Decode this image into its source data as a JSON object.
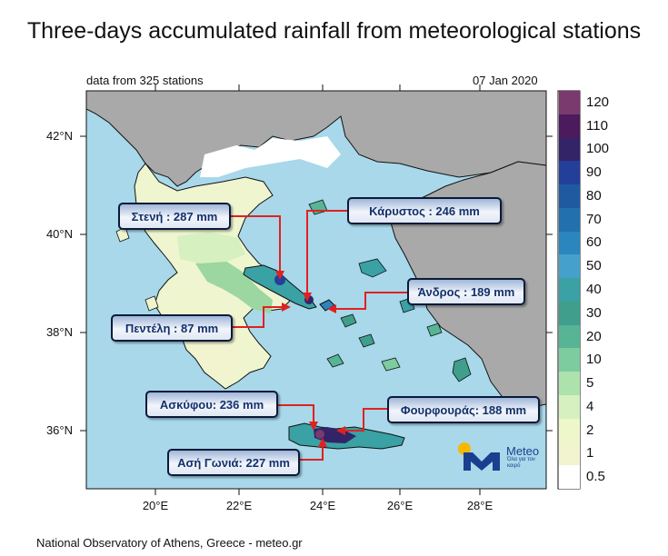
{
  "title": "Three-days accumulated rainfall from meteorological stations",
  "stations_note": "data from 325 stations",
  "date": "07 Jan 2020",
  "footer": "National Observatory of Athens, Greece - meteo.gr",
  "lat_labels": [
    "42°N",
    "40°N",
    "38°N",
    "36°N"
  ],
  "lon_labels": [
    "20°E",
    "22°E",
    "24°E",
    "26°E",
    "28°E"
  ],
  "colorbar": {
    "labels": [
      "120",
      "110",
      "100",
      "90",
      "80",
      "70",
      "60",
      "50",
      "40",
      "30",
      "20",
      "10",
      "5",
      "4",
      "2",
      "1",
      "0.5"
    ],
    "colors": [
      "#7a3a6e",
      "#4b1b5e",
      "#332468",
      "#243f9a",
      "#1f5aa0",
      "#2270ad",
      "#2b86be",
      "#46a0cc",
      "#3aa1a4",
      "#3f9e8c",
      "#57b494",
      "#7ccca0",
      "#aee2ac",
      "#d6f0c0",
      "#eef7c9",
      "#f1f4cf",
      "#ffffff"
    ]
  },
  "callouts": [
    {
      "label": "Στενή : 287 mm"
    },
    {
      "label": "Κάρυστος : 246 mm"
    },
    {
      "label": "Άνδρος : 189 mm"
    },
    {
      "label": "Πεντέλη : 87 mm"
    },
    {
      "label": "Ασκύφου: 236 mm"
    },
    {
      "label": "Φουρφουράς: 188 mm"
    },
    {
      "label": "Ασή Γωνιά: 227 mm"
    }
  ],
  "logo": {
    "word": "Meteo",
    "tagline": "Όλα για τον καιρό"
  }
}
